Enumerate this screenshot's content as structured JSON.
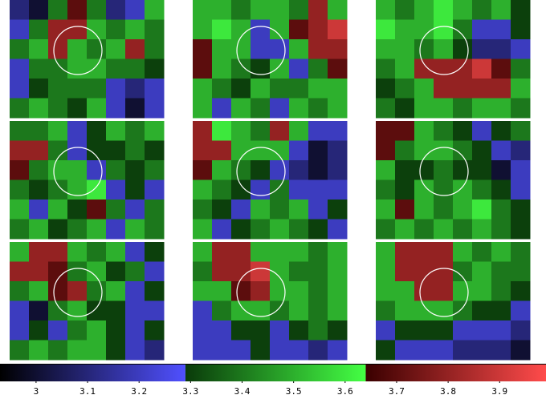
{
  "chart_data": {
    "type": "heatmap",
    "clim": [
      2.93,
      3.99
    ],
    "colormap": [
      {
        "range": [
          2.93,
          3.29
        ],
        "colors": [
          "#000000",
          "#5050ff"
        ]
      },
      {
        "range": [
          3.29,
          3.64
        ],
        "colors": [
          "#0a3a0a",
          "#44ff44"
        ]
      },
      {
        "range": [
          3.64,
          3.99
        ],
        "colors": [
          "#3a0000",
          "#ff4b4b"
        ]
      }
    ],
    "ticks": [
      3,
      3.1,
      3.2,
      3.3,
      3.4,
      3.5,
      3.6,
      3.7,
      3.8,
      3.9
    ],
    "panels": [
      {
        "values": [
          [
            3.1,
            3.0,
            3.4,
            3.7,
            3.4,
            3.1,
            3.2,
            3.5
          ],
          [
            3.2,
            3.4,
            3.8,
            3.8,
            3.5,
            3.4,
            3.5,
            3.4
          ],
          [
            3.4,
            3.5,
            3.8,
            3.5,
            3.4,
            3.5,
            3.8,
            3.4
          ],
          [
            3.2,
            3.4,
            3.4,
            3.5,
            3.5,
            3.4,
            3.4,
            3.3
          ],
          [
            3.2,
            3.3,
            3.4,
            3.4,
            3.4,
            3.2,
            3.1,
            3.2
          ],
          [
            3.4,
            3.5,
            3.4,
            3.3,
            3.5,
            3.2,
            3.0,
            3.2
          ]
        ]
      },
      {
        "values": [
          [
            3.5,
            3.5,
            3.4,
            3.5,
            3.5,
            3.4,
            3.8,
            3.5
          ],
          [
            3.5,
            3.6,
            3.5,
            3.2,
            3.5,
            3.7,
            3.8,
            3.9
          ],
          [
            3.7,
            3.5,
            3.5,
            3.2,
            3.2,
            3.5,
            3.8,
            3.8
          ],
          [
            3.7,
            3.5,
            3.4,
            3.3,
            3.5,
            3.2,
            3.4,
            3.7
          ],
          [
            3.5,
            3.4,
            3.3,
            3.5,
            3.4,
            3.4,
            3.5,
            3.5
          ],
          [
            3.5,
            3.2,
            3.5,
            3.4,
            3.2,
            3.5,
            3.4,
            3.5
          ]
        ]
      },
      {
        "values": [
          [
            3.5,
            3.4,
            3.5,
            3.6,
            3.5,
            3.4,
            3.5,
            3.3
          ],
          [
            3.6,
            3.5,
            3.5,
            3.6,
            3.4,
            3.2,
            3.2,
            3.3
          ],
          [
            3.5,
            3.5,
            3.4,
            3.5,
            3.3,
            3.1,
            3.1,
            3.2
          ],
          [
            3.4,
            3.5,
            3.8,
            3.8,
            3.8,
            3.9,
            3.7,
            3.4
          ],
          [
            3.3,
            3.4,
            3.5,
            3.8,
            3.8,
            3.8,
            3.8,
            3.5
          ],
          [
            3.4,
            3.3,
            3.5,
            3.5,
            3.4,
            3.5,
            3.5,
            3.4
          ]
        ]
      },
      {
        "values": [
          [
            3.4,
            3.4,
            3.5,
            3.2,
            3.3,
            3.5,
            3.4,
            3.5
          ],
          [
            3.8,
            3.8,
            3.4,
            3.2,
            3.3,
            3.3,
            3.4,
            3.3
          ],
          [
            3.7,
            3.4,
            3.5,
            3.5,
            3.2,
            3.4,
            3.3,
            3.4
          ],
          [
            3.4,
            3.3,
            3.4,
            3.5,
            3.6,
            3.2,
            3.3,
            3.2
          ],
          [
            3.5,
            3.2,
            3.5,
            3.3,
            3.7,
            3.4,
            3.2,
            3.4
          ],
          [
            3.4,
            3.5,
            3.3,
            3.4,
            3.5,
            3.2,
            3.5,
            3.4
          ]
        ]
      },
      {
        "values": [
          [
            3.8,
            3.6,
            3.5,
            3.4,
            3.8,
            3.5,
            3.2,
            3.2
          ],
          [
            3.8,
            3.8,
            3.5,
            3.5,
            3.5,
            3.2,
            3.0,
            3.1
          ],
          [
            3.7,
            3.5,
            3.4,
            3.3,
            3.2,
            3.1,
            3.0,
            3.1
          ],
          [
            3.5,
            3.4,
            3.3,
            3.2,
            3.4,
            3.2,
            3.2,
            3.2
          ],
          [
            3.4,
            3.3,
            3.2,
            3.5,
            3.4,
            3.5,
            3.2,
            3.3
          ],
          [
            3.5,
            3.2,
            3.3,
            3.4,
            3.5,
            3.4,
            3.3,
            3.2
          ]
        ]
      },
      {
        "values": [
          [
            3.7,
            3.7,
            3.5,
            3.4,
            3.3,
            3.2,
            3.3,
            3.4
          ],
          [
            3.7,
            3.4,
            3.5,
            3.5,
            3.4,
            3.3,
            3.2,
            3.1
          ],
          [
            3.5,
            3.3,
            3.3,
            3.4,
            3.3,
            3.3,
            3.0,
            3.2
          ],
          [
            3.4,
            3.3,
            3.5,
            3.4,
            3.5,
            3.4,
            3.3,
            3.2
          ],
          [
            3.5,
            3.7,
            3.5,
            3.4,
            3.5,
            3.6,
            3.4,
            3.3
          ],
          [
            3.4,
            3.5,
            3.4,
            3.5,
            3.4,
            3.5,
            3.4,
            3.3
          ]
        ]
      },
      {
        "values": [
          [
            3.5,
            3.8,
            3.8,
            3.5,
            3.4,
            3.5,
            3.2,
            3.3
          ],
          [
            3.8,
            3.8,
            3.7,
            3.4,
            3.5,
            3.3,
            3.4,
            3.2
          ],
          [
            3.4,
            3.5,
            3.7,
            3.8,
            3.4,
            3.5,
            3.2,
            3.3
          ],
          [
            3.2,
            3.0,
            3.4,
            3.5,
            3.3,
            3.3,
            3.2,
            3.2
          ],
          [
            3.2,
            3.3,
            3.2,
            3.4,
            3.5,
            3.3,
            3.2,
            3.3
          ],
          [
            3.4,
            3.5,
            3.4,
            3.5,
            3.5,
            3.3,
            3.2,
            3.1
          ]
        ]
      },
      {
        "values": [
          [
            3.5,
            3.8,
            3.8,
            3.5,
            3.5,
            3.5,
            3.4,
            3.5
          ],
          [
            3.4,
            3.8,
            3.8,
            3.9,
            3.5,
            3.4,
            3.4,
            3.5
          ],
          [
            3.5,
            3.5,
            3.7,
            3.8,
            3.5,
            3.5,
            3.4,
            3.5
          ],
          [
            3.2,
            3.4,
            3.5,
            3.5,
            3.4,
            3.5,
            3.4,
            3.5
          ],
          [
            3.2,
            3.2,
            3.3,
            3.3,
            3.2,
            3.3,
            3.4,
            3.3
          ],
          [
            3.2,
            3.2,
            3.2,
            3.3,
            3.2,
            3.2,
            3.1,
            3.2
          ]
        ]
      },
      {
        "values": [
          [
            3.5,
            3.8,
            3.8,
            3.8,
            3.5,
            3.4,
            3.5,
            3.4
          ],
          [
            3.5,
            3.8,
            3.8,
            3.8,
            3.4,
            3.5,
            3.4,
            3.4
          ],
          [
            3.5,
            3.5,
            3.8,
            3.8,
            3.5,
            3.5,
            3.4,
            3.3
          ],
          [
            3.4,
            3.5,
            3.5,
            3.5,
            3.4,
            3.3,
            3.3,
            3.2
          ],
          [
            3.2,
            3.3,
            3.3,
            3.3,
            3.2,
            3.2,
            3.2,
            3.1
          ],
          [
            3.3,
            3.2,
            3.2,
            3.2,
            3.1,
            3.1,
            3.1,
            3.0
          ]
        ]
      }
    ]
  }
}
